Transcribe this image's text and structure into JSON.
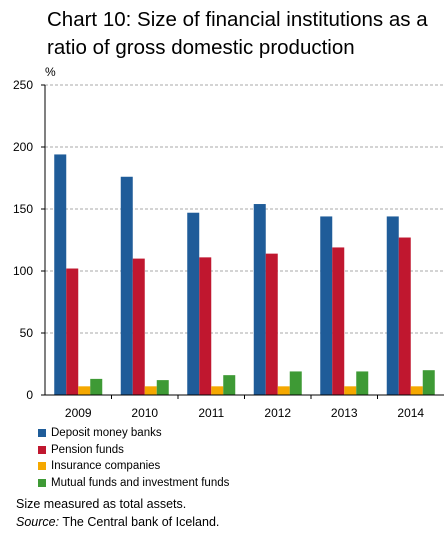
{
  "chart_data": {
    "type": "bar",
    "title_lines": [
      "Chart 10: Size of financial institutions as a",
      "ratio of gross domestic production"
    ],
    "ylabel": "%",
    "xlabel": "",
    "ylim": [
      0,
      250
    ],
    "yticks": [
      0,
      50,
      100,
      150,
      200,
      250
    ],
    "grid": true,
    "legend_position": "bottom-left",
    "categories": [
      "2009",
      "2010",
      "2011",
      "2012",
      "2013",
      "2014"
    ],
    "series": [
      {
        "name": "Deposit money banks",
        "color": "#1f5c99",
        "values": [
          194,
          176,
          147,
          154,
          144,
          144
        ]
      },
      {
        "name": "Pension funds",
        "color": "#c0172f",
        "values": [
          102,
          110,
          111,
          114,
          119,
          127
        ]
      },
      {
        "name": "Insurance companies",
        "color": "#f5a800",
        "values": [
          7,
          7,
          7,
          7,
          7,
          7
        ]
      },
      {
        "name": "Mutual funds and investment funds",
        "color": "#3e9a35",
        "values": [
          13,
          12,
          16,
          19,
          19,
          20
        ]
      }
    ]
  },
  "notes": {
    "line1": "Size measured as total assets.",
    "source_label": "Source:",
    "source_text": " The Central bank of Iceland."
  }
}
